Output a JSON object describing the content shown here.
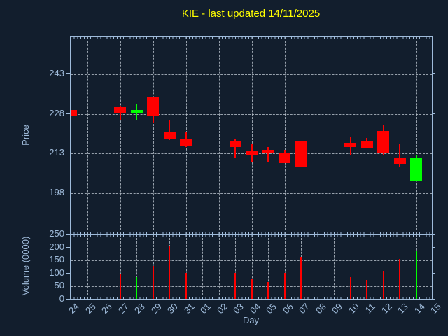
{
  "title": "KIE - last updated 14/11/2025",
  "colors": {
    "background": "#121e2d",
    "axis": "#9fbbda",
    "grid": "#b9c2cc",
    "tick_label": "#9fbbda",
    "title": "#ffff00",
    "up": "#00ff00",
    "down": "#ff0000"
  },
  "chart_data": [
    {
      "type": "candlestick",
      "title": "KIE - last updated 14/11/2025",
      "xlabel": "Day",
      "ylabel": "Price",
      "x_labels": [
        "24",
        "25",
        "26",
        "27",
        "28",
        "29",
        "30",
        "31",
        "01",
        "02",
        "03",
        "04",
        "05",
        "06",
        "07",
        "08",
        "09",
        "10",
        "11",
        "12",
        "13",
        "14",
        "15"
      ],
      "ylim": [
        182.4,
        257
      ],
      "yticks": [
        198,
        213,
        228,
        243
      ],
      "grid": "dashed",
      "legend": "none",
      "candles": [
        {
          "day": "24",
          "open": 229.5,
          "high": 229.5,
          "low": 227,
          "close": 227
        },
        {
          "day": "27",
          "open": 230.5,
          "high": 231,
          "low": 225.5,
          "close": 228.5
        },
        {
          "day": "28",
          "open": 228.5,
          "high": 231.5,
          "low": 225.5,
          "close": 229.5
        },
        {
          "day": "29",
          "open": 234.5,
          "high": 234.5,
          "low": 224.5,
          "close": 227
        },
        {
          "day": "30",
          "open": 221,
          "high": 225.5,
          "low": 218,
          "close": 218.5
        },
        {
          "day": "31",
          "open": 218.5,
          "high": 221,
          "low": 215.5,
          "close": 216
        },
        {
          "day": "03",
          "open": 217.5,
          "high": 218.5,
          "low": 211.5,
          "close": 215.5
        },
        {
          "day": "04",
          "open": 214,
          "high": 216.5,
          "low": 210,
          "close": 212.5
        },
        {
          "day": "05",
          "open": 214.5,
          "high": 215.5,
          "low": 210,
          "close": 213
        },
        {
          "day": "06",
          "open": 213,
          "high": 214.5,
          "low": 209.5,
          "close": 209.5
        },
        {
          "day": "07",
          "open": 217.5,
          "high": 217.5,
          "low": 208,
          "close": 208
        },
        {
          "day": "10",
          "open": 217,
          "high": 219.5,
          "low": 212.5,
          "close": 215.5
        },
        {
          "day": "11",
          "open": 217.5,
          "high": 219,
          "low": 215,
          "close": 215
        },
        {
          "day": "12",
          "open": 221.5,
          "high": 224,
          "low": 212.5,
          "close": 213
        },
        {
          "day": "13",
          "open": 211.5,
          "high": 216.5,
          "low": 208,
          "close": 209
        },
        {
          "day": "14",
          "open": 202.5,
          "high": 212.5,
          "low": 202.5,
          "close": 211.5
        }
      ]
    },
    {
      "type": "bar",
      "ylabel": "Volume (0000)",
      "ylim": [
        0,
        250
      ],
      "yticks": [
        0,
        50,
        100,
        150,
        200,
        250
      ],
      "grid": "dashed",
      "bars": [
        {
          "day": "27",
          "value": 97
        },
        {
          "day": "28",
          "value": 85
        },
        {
          "day": "29",
          "value": 129
        },
        {
          "day": "30",
          "value": 206
        },
        {
          "day": "31",
          "value": 103
        },
        {
          "day": "03",
          "value": 103
        },
        {
          "day": "04",
          "value": 80
        },
        {
          "day": "05",
          "value": 68
        },
        {
          "day": "06",
          "value": 101
        },
        {
          "day": "07",
          "value": 164
        },
        {
          "day": "10",
          "value": 87
        },
        {
          "day": "11",
          "value": 75
        },
        {
          "day": "12",
          "value": 110
        },
        {
          "day": "13",
          "value": 157
        },
        {
          "day": "14",
          "value": 185
        }
      ]
    }
  ]
}
